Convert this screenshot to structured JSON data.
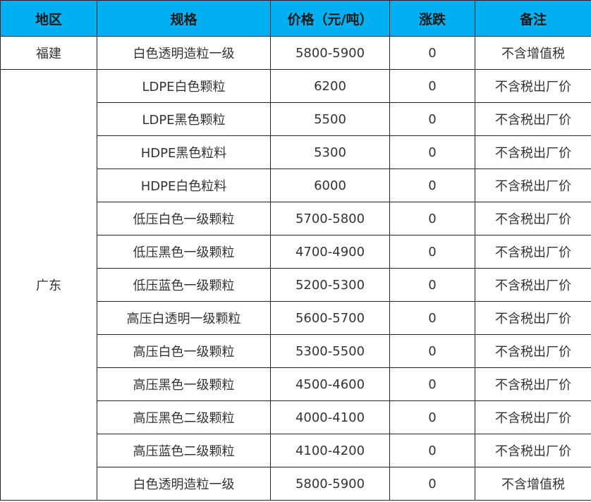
{
  "header": {
    "region": "地区",
    "spec": "规格",
    "price": "价格（元/吨）",
    "change": "涨跌",
    "note": "备注"
  },
  "colors": {
    "header_bg": "#00b0f0"
  },
  "groups": [
    {
      "region": "福建",
      "rows": [
        {
          "spec": "白色透明造粒一级",
          "price": "5800-5900",
          "change": "0",
          "note": "不含增值税"
        }
      ]
    },
    {
      "region": "广东",
      "rows": [
        {
          "spec": "LDPE白色颗粒",
          "price": "6200",
          "change": "0",
          "note": "不含税出厂价"
        },
        {
          "spec": "LDPE黑色颗粒",
          "price": "5500",
          "change": "0",
          "note": "不含税出厂价"
        },
        {
          "spec": "HDPE黑色粒料",
          "price": "5300",
          "change": "0",
          "note": "不含税出厂价"
        },
        {
          "spec": "HDPE白色粒料",
          "price": "6000",
          "change": "0",
          "note": "不含税出厂价"
        },
        {
          "spec": "低压白色一级颗粒",
          "price": "5700-5800",
          "change": "0",
          "note": "不含税出厂价"
        },
        {
          "spec": "低压黑色一级颗粒",
          "price": "4700-4900",
          "change": "0",
          "note": "不含税出厂价"
        },
        {
          "spec": "低压蓝色一级颗粒",
          "price": "5200-5300",
          "change": "0",
          "note": "不含税出厂价"
        },
        {
          "spec": "高压白透明一级颗粒",
          "price": "5600-5700",
          "change": "0",
          "note": "不含税出厂价"
        },
        {
          "spec": "高压白色一级颗粒",
          "price": "5300-5500",
          "change": "0",
          "note": "不含税出厂价"
        },
        {
          "spec": "高压黑色一级颗粒",
          "price": "4500-4600",
          "change": "0",
          "note": "不含税出厂价"
        },
        {
          "spec": "高压黑色二级颗粒",
          "price": "4000-4100",
          "change": "0",
          "note": "不含税出厂价"
        },
        {
          "spec": "高压蓝色二级颗粒",
          "price": "4100-4200",
          "change": "0",
          "note": "不含税出厂价"
        },
        {
          "spec": "白色透明造粒一级",
          "price": "5800-5900",
          "change": "0",
          "note": "不含增值税"
        }
      ]
    }
  ]
}
